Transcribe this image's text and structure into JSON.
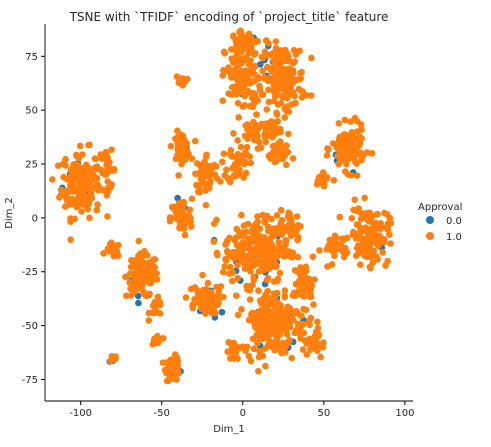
{
  "chart_data": {
    "type": "scatter",
    "title": "TSNE with `TFIDF` encoding of `project_title` feature",
    "xlabel": "Dim_1",
    "ylabel": "Dim_2",
    "xlim": [
      -122,
      105
    ],
    "ylim": [
      -85,
      90
    ],
    "xticks": [
      -100,
      -50,
      0,
      50,
      100
    ],
    "yticks": [
      -75,
      -50,
      -25,
      0,
      25,
      50,
      75
    ],
    "grid": false,
    "legend": {
      "title": "Approval",
      "placement": "right",
      "entries": [
        {
          "label": "0.0",
          "color": "#1f77b4"
        },
        {
          "label": "1.0",
          "color": "#ff7f0e"
        }
      ]
    },
    "series": [
      {
        "name": "0.0",
        "color": "#1f77b4",
        "clusters": [
          {
            "cx": -100,
            "cy": 18,
            "rx": 10,
            "ry": 14,
            "n": 14
          },
          {
            "cx": -63,
            "cy": -28,
            "rx": 8,
            "ry": 8,
            "n": 10
          },
          {
            "cx": 10,
            "cy": 68,
            "rx": 16,
            "ry": 14,
            "n": 16
          },
          {
            "cx": 65,
            "cy": 30,
            "rx": 8,
            "ry": 8,
            "n": 9
          },
          {
            "cx": 5,
            "cy": -20,
            "rx": 20,
            "ry": 14,
            "n": 16
          },
          {
            "cx": 20,
            "cy": -50,
            "rx": 18,
            "ry": 14,
            "n": 12
          },
          {
            "cx": -43,
            "cy": -70,
            "rx": 4,
            "ry": 4,
            "n": 5
          },
          {
            "cx": -38,
            "cy": 33,
            "rx": 5,
            "ry": 6,
            "n": 5
          },
          {
            "cx": -40,
            "cy": 0,
            "rx": 5,
            "ry": 10,
            "n": 5
          },
          {
            "cx": 80,
            "cy": -10,
            "rx": 10,
            "ry": 10,
            "n": 8
          },
          {
            "cx": -20,
            "cy": -40,
            "rx": 10,
            "ry": 8,
            "n": 6
          },
          {
            "cx": -80,
            "cy": -65,
            "rx": 2,
            "ry": 2,
            "n": 3
          }
        ]
      },
      {
        "name": "1.0",
        "color": "#ff7f0e",
        "clusters": [
          {
            "cx": -100,
            "cy": 16,
            "rx": 11,
            "ry": 14,
            "n": 170
          },
          {
            "cx": -83,
            "cy": 22,
            "rx": 4,
            "ry": 8,
            "n": 25
          },
          {
            "cx": -62,
            "cy": -27,
            "rx": 9,
            "ry": 9,
            "n": 110
          },
          {
            "cx": -80,
            "cy": -15,
            "rx": 4,
            "ry": 3,
            "n": 18
          },
          {
            "cx": -53,
            "cy": -42,
            "rx": 4,
            "ry": 4,
            "n": 15
          },
          {
            "cx": -53,
            "cy": -57,
            "rx": 3,
            "ry": 3,
            "n": 14
          },
          {
            "cx": -43,
            "cy": -70,
            "rx": 4,
            "ry": 5,
            "n": 45
          },
          {
            "cx": -80,
            "cy": -65,
            "rx": 2,
            "ry": 2,
            "n": 8
          },
          {
            "cx": -38,
            "cy": 33,
            "rx": 5,
            "ry": 6,
            "n": 45
          },
          {
            "cx": -38,
            "cy": 64,
            "rx": 3,
            "ry": 2,
            "n": 12
          },
          {
            "cx": -38,
            "cy": 0,
            "rx": 6,
            "ry": 8,
            "n": 60
          },
          {
            "cx": -22,
            "cy": 20,
            "rx": 7,
            "ry": 9,
            "n": 50
          },
          {
            "cx": -3,
            "cy": 25,
            "rx": 6,
            "ry": 8,
            "n": 40
          },
          {
            "cx": -25,
            "cy": -38,
            "rx": 10,
            "ry": 6,
            "n": 70
          },
          {
            "cx": -5,
            "cy": -62,
            "rx": 4,
            "ry": 4,
            "n": 18
          },
          {
            "cx": 0,
            "cy": 65,
            "rx": 10,
            "ry": 15,
            "n": 120
          },
          {
            "cx": 25,
            "cy": 65,
            "rx": 12,
            "ry": 14,
            "n": 160
          },
          {
            "cx": 0,
            "cy": 82,
            "rx": 6,
            "ry": 4,
            "n": 40
          },
          {
            "cx": 10,
            "cy": 40,
            "rx": 12,
            "ry": 6,
            "n": 60
          },
          {
            "cx": 22,
            "cy": 30,
            "rx": 6,
            "ry": 6,
            "n": 30
          },
          {
            "cx": 65,
            "cy": 32,
            "rx": 9,
            "ry": 9,
            "n": 120
          },
          {
            "cx": 50,
            "cy": 18,
            "rx": 5,
            "ry": 5,
            "n": 15
          },
          {
            "cx": 78,
            "cy": -8,
            "rx": 11,
            "ry": 12,
            "n": 130
          },
          {
            "cx": 55,
            "cy": -15,
            "rx": 6,
            "ry": 8,
            "n": 25
          },
          {
            "cx": 8,
            "cy": -15,
            "rx": 18,
            "ry": 14,
            "n": 230
          },
          {
            "cx": 30,
            "cy": -5,
            "rx": 6,
            "ry": 8,
            "n": 35
          },
          {
            "cx": 20,
            "cy": -48,
            "rx": 18,
            "ry": 14,
            "n": 220
          },
          {
            "cx": 38,
            "cy": -30,
            "rx": 6,
            "ry": 8,
            "n": 40
          },
          {
            "cx": 45,
            "cy": -58,
            "rx": 5,
            "ry": 6,
            "n": 25
          }
        ]
      }
    ]
  }
}
